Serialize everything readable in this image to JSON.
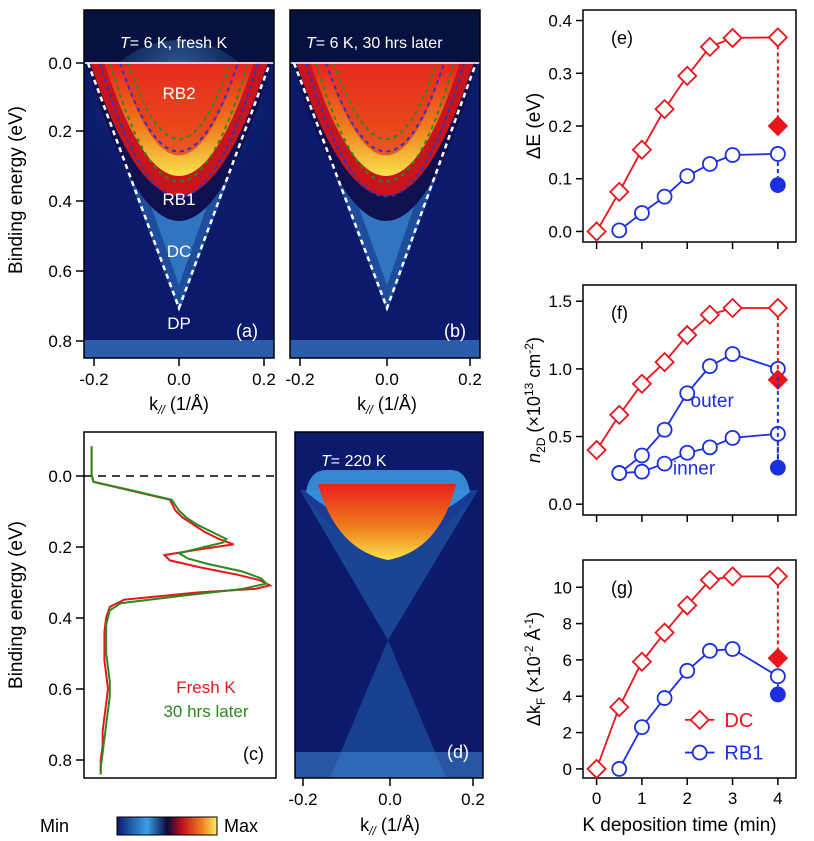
{
  "colors": {
    "dc": "#e8151b",
    "rb1": "#1c2fe0",
    "green": "#2a8a1e",
    "axis": "#000000"
  },
  "chart_data": [
    {
      "id": "a",
      "type": "heatmap",
      "title_T": "T",
      "title_rest": "= 6 K, fresh K",
      "panel_label": "(a)",
      "band_labels": [
        "RB2",
        "RB1",
        "DC",
        "DP"
      ],
      "xlabel_main": "k",
      "xlabel_sub": "//",
      "xlabel_unit": " (1/Å)",
      "ylabel": "Binding energy (eV)",
      "x_ticks": [
        "-0.2",
        "0.0",
        "0.2"
      ],
      "y_ticks": [
        "0.0",
        "0.2",
        "0.4",
        "0.6",
        "0.8"
      ],
      "xlim": [
        -0.21,
        0.21
      ],
      "ylim": [
        0.83,
        -0.14
      ]
    },
    {
      "id": "b",
      "type": "heatmap",
      "title_T": "T",
      "title_rest": "= 6 K, 30 hrs later",
      "panel_label": "(b)",
      "xlabel_main": "k",
      "xlabel_sub": "//",
      "xlabel_unit": " (1/Å)",
      "x_ticks": [
        "-0.2",
        "0.0",
        "0.2"
      ],
      "xlim": [
        -0.21,
        0.21
      ],
      "ylim": [
        0.83,
        -0.14
      ]
    },
    {
      "id": "c",
      "type": "line",
      "panel_label": "(c)",
      "ylabel": "Binding energy (eV)",
      "y_ticks": [
        "0.0",
        "0.2",
        "0.4",
        "0.6",
        "0.8"
      ],
      "ylim": [
        0.83,
        -0.14
      ],
      "series": [
        {
          "name": "Fresh K",
          "energy": [
            -0.1,
            -0.02,
            0.0,
            0.02,
            0.05,
            0.08,
            0.1,
            0.12,
            0.14,
            0.16,
            0.175,
            0.19,
            0.205,
            0.22,
            0.24,
            0.26,
            0.275,
            0.29,
            0.3,
            0.31,
            0.33,
            0.35,
            0.38,
            0.42,
            0.46,
            0.5,
            0.54,
            0.58,
            0.62,
            0.66,
            0.7,
            0.74,
            0.78,
            0.82
          ],
          "intensity": [
            0.02,
            0.02,
            0.03,
            0.2,
            0.45,
            0.48,
            0.52,
            0.58,
            0.64,
            0.72,
            0.8,
            0.6,
            0.42,
            0.45,
            0.62,
            0.82,
            0.94,
            1.0,
            0.92,
            0.6,
            0.2,
            0.12,
            0.1,
            0.09,
            0.09,
            0.09,
            0.1,
            0.11,
            0.1,
            0.09,
            0.08,
            0.08,
            0.07,
            0.07
          ]
        },
        {
          "name": "30 hrs later",
          "energy": [
            -0.1,
            -0.02,
            0.0,
            0.02,
            0.05,
            0.08,
            0.1,
            0.12,
            0.14,
            0.16,
            0.17,
            0.185,
            0.2,
            0.215,
            0.23,
            0.25,
            0.27,
            0.285,
            0.3,
            0.32,
            0.34,
            0.36,
            0.4,
            0.44,
            0.48,
            0.52,
            0.56,
            0.6,
            0.64,
            0.68,
            0.72,
            0.76,
            0.8,
            0.82
          ],
          "intensity": [
            0.02,
            0.02,
            0.03,
            0.21,
            0.46,
            0.5,
            0.54,
            0.6,
            0.68,
            0.76,
            0.74,
            0.62,
            0.5,
            0.55,
            0.66,
            0.84,
            0.95,
            0.98,
            0.85,
            0.5,
            0.18,
            0.12,
            0.1,
            0.1,
            0.1,
            0.11,
            0.12,
            0.12,
            0.11,
            0.1,
            0.09,
            0.08,
            0.07,
            0.07
          ]
        }
      ],
      "fermi_level": 0.0
    },
    {
      "id": "d",
      "type": "heatmap",
      "title_T": "T",
      "title_rest": "= 220 K",
      "panel_label": "(d)",
      "xlabel_main": "k",
      "xlabel_sub": "//",
      "xlabel_unit": " (1/Å)",
      "x_ticks": [
        "-0.2",
        "0.0",
        "0.2"
      ],
      "xlim": [
        -0.21,
        0.21
      ]
    },
    {
      "id": "e",
      "type": "line",
      "panel_label": "(e)",
      "ylabel": "ΔE (eV)",
      "y_ticks": [
        "0.0",
        "0.1",
        "0.2",
        "0.3",
        "0.4"
      ],
      "ylim": [
        -0.02,
        0.42
      ],
      "xlim": [
        -0.3,
        4.4
      ],
      "series": [
        {
          "name": "DC",
          "marker": "open-diamond",
          "color": "#e8151b",
          "x": [
            0,
            0.5,
            1,
            1.5,
            2,
            2.5,
            3,
            4
          ],
          "y": [
            0.0,
            0.075,
            0.155,
            0.232,
            0.295,
            0.35,
            0.367,
            0.368
          ]
        },
        {
          "name": "RB1",
          "marker": "open-circle",
          "color": "#1c2fe0",
          "x": [
            0.5,
            1,
            1.5,
            2,
            2.5,
            3,
            4
          ],
          "y": [
            0.002,
            0.035,
            0.066,
            0.105,
            0.128,
            0.145,
            0.147
          ]
        }
      ],
      "after_points": [
        {
          "series": "DC",
          "x": 4,
          "y": 0.2,
          "marker": "filled-diamond"
        },
        {
          "series": "RB1",
          "x": 4,
          "y": 0.088,
          "marker": "filled-circle"
        }
      ]
    },
    {
      "id": "f",
      "type": "line",
      "panel_label": "(f)",
      "ylabel_main": "n",
      "ylabel_sub": "2D",
      "ylabel_unit": " (×10",
      "ylabel_exp": "13",
      "ylabel_tail": " cm",
      "ylabel_exp2": "-2",
      "ylabel_close": ")",
      "y_ticks": [
        "0.0",
        "0.5",
        "1.0",
        "1.5"
      ],
      "ylim": [
        -0.08,
        1.62
      ],
      "xlim": [
        -0.3,
        4.4
      ],
      "annotations": [
        "outer",
        "inner"
      ],
      "series": [
        {
          "name": "DC",
          "marker": "open-diamond",
          "color": "#e8151b",
          "x": [
            0,
            0.5,
            1,
            1.5,
            2,
            2.5,
            3,
            4
          ],
          "y": [
            0.4,
            0.66,
            0.89,
            1.05,
            1.25,
            1.4,
            1.45,
            1.45
          ]
        },
        {
          "name": "RB1 outer",
          "marker": "open-circle",
          "color": "#1c2fe0",
          "x": [
            0.5,
            1,
            1.5,
            2,
            2.5,
            3,
            4
          ],
          "y": [
            0.23,
            0.36,
            0.55,
            0.82,
            1.02,
            1.11,
            1.0
          ]
        },
        {
          "name": "RB1 inner",
          "marker": "open-circle",
          "color": "#1c2fe0",
          "x": [
            0.5,
            1,
            1.5,
            2,
            2.5,
            3,
            4
          ],
          "y": [
            0.23,
            0.24,
            0.3,
            0.38,
            0.42,
            0.49,
            0.52
          ]
        }
      ],
      "after_points": [
        {
          "series": "DC",
          "x": 4,
          "y": 0.92,
          "marker": "filled-diamond"
        },
        {
          "series": "RB1 inner",
          "x": 4,
          "y": 0.27,
          "marker": "filled-circle"
        }
      ],
      "dashed_link": {
        "x": 4,
        "from": 1.0,
        "to": 0.27
      }
    },
    {
      "id": "g",
      "type": "line",
      "panel_label": "(g)",
      "ylabel_main": "Δk",
      "ylabel_sub": "F",
      "ylabel_unit": " (×10",
      "ylabel_exp": "-2",
      "ylabel_tail": " Å",
      "ylabel_exp2": "-1",
      "ylabel_close": ")",
      "y_ticks": [
        "0",
        "2",
        "4",
        "6",
        "8",
        "10"
      ],
      "x_ticks": [
        "0",
        "1",
        "2",
        "3",
        "4"
      ],
      "xlabel": "K deposition time (min)",
      "ylim": [
        -0.5,
        11.5
      ],
      "xlim": [
        -0.3,
        4.4
      ],
      "legend": [
        "DC",
        "RB1"
      ],
      "series": [
        {
          "name": "DC",
          "marker": "open-diamond",
          "color": "#e8151b",
          "x": [
            0,
            0.5,
            1,
            1.5,
            2,
            2.5,
            3,
            4
          ],
          "y": [
            0.0,
            3.4,
            5.9,
            7.5,
            9.0,
            10.4,
            10.6,
            10.6
          ]
        },
        {
          "name": "RB1",
          "marker": "open-circle",
          "color": "#1c2fe0",
          "x": [
            0.5,
            1,
            1.5,
            2,
            2.5,
            3,
            4
          ],
          "y": [
            0.0,
            2.3,
            3.9,
            5.4,
            6.5,
            6.6,
            5.1
          ]
        }
      ],
      "after_points": [
        {
          "series": "DC",
          "x": 4,
          "y": 6.1,
          "marker": "filled-diamond"
        },
        {
          "series": "RB1",
          "x": 4,
          "y": 4.1,
          "marker": "filled-circle"
        }
      ]
    }
  ],
  "colorbar": {
    "min_label": "Min",
    "max_label": "Max"
  },
  "legend_c": {
    "fresh": "Fresh K",
    "later": "30 hrs later"
  }
}
